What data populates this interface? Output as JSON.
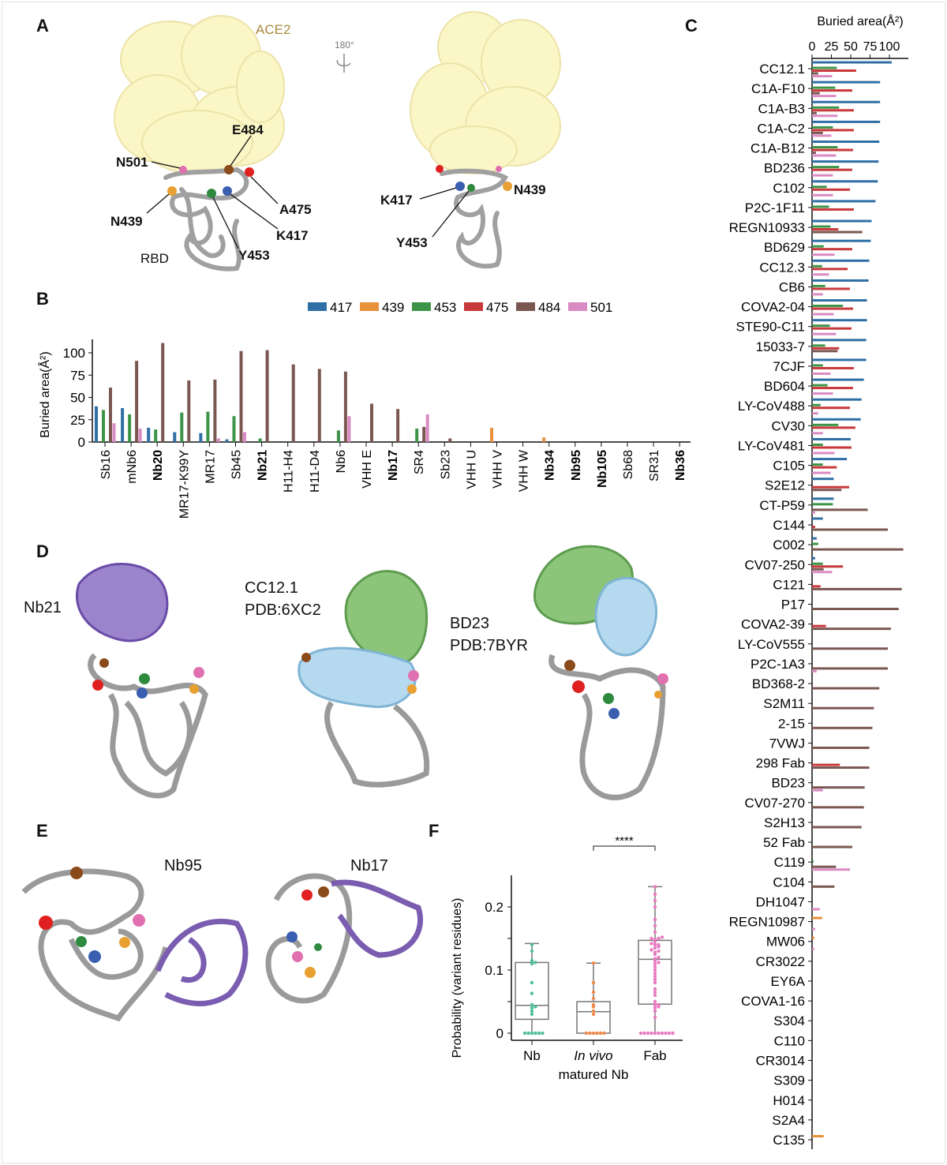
{
  "panel_labels": {
    "a": "A",
    "b": "B",
    "c": "C",
    "d": "D",
    "e": "E",
    "f": "F"
  },
  "colors": {
    "417": "#2f6fa5",
    "439": "#e8903a",
    "453": "#3d9448",
    "475": "#c7393b",
    "484": "#7b5752",
    "501": "#da8bc3",
    "ace2": "#fbf6c6",
    "ribbon": "#a0a0a0",
    "nb_purple": "#7a5cb0",
    "heavy_green": "#8cc47a",
    "light_blue": "#b5d9ee"
  },
  "panelA": {
    "ace2": "ACE2",
    "rotation": "180°",
    "rbd": "RBD",
    "left_labels": [
      "E484",
      "N501",
      "N439",
      "A475",
      "K417",
      "Y453"
    ],
    "right_labels": [
      "K417",
      "N439",
      "Y453"
    ]
  },
  "panelD": {
    "nb21": "Nb21",
    "cc121": "CC12.1",
    "cc121_pdb": "PDB:6XC2",
    "bd23": "BD23",
    "bd23_pdb": "PDB:7BYR"
  },
  "panelE": {
    "nb95": "Nb95",
    "nb17": "Nb17"
  },
  "chart_data": [
    {
      "id": "B",
      "type": "bar",
      "ylabel": "Buried area(Å²)",
      "ylim": [
        0,
        115
      ],
      "yticks": [
        0,
        25,
        50,
        75,
        100
      ],
      "legend_position": "top",
      "grid": false,
      "categories": [
        "Sb16",
        "mNb6",
        "Nb20",
        "MR17-K99Y",
        "MR17",
        "Sb45",
        "Nb21",
        "H11-H4",
        "H11-D4",
        "Nb6",
        "VHH E",
        "Nb17",
        "SR4",
        "Sb23",
        "VHH U",
        "VHH V",
        "VHH W",
        "Nb34",
        "Nb95",
        "Nb105",
        "Sb68",
        "SR31",
        "Nb36"
      ],
      "bold_categories": [
        "Nb20",
        "Nb21",
        "Nb17",
        "Nb34",
        "Nb95",
        "Nb105",
        "Nb36"
      ],
      "series": [
        {
          "name": "417",
          "values": [
            40,
            38,
            16,
            11,
            10,
            3,
            0,
            0,
            0,
            0,
            0,
            0,
            0,
            0,
            0,
            0,
            0,
            0,
            0,
            0,
            0,
            0,
            0
          ]
        },
        {
          "name": "439",
          "values": [
            0,
            0,
            0,
            0,
            0,
            0,
            0,
            0,
            0,
            0,
            0,
            0,
            0,
            0,
            0,
            16,
            0,
            5,
            0,
            0,
            0,
            0,
            0
          ]
        },
        {
          "name": "453",
          "values": [
            36,
            31,
            14,
            33,
            34,
            29,
            4,
            0,
            0,
            13,
            0,
            0,
            15,
            0,
            0,
            0,
            0,
            0,
            0,
            0,
            0,
            0,
            0
          ]
        },
        {
          "name": "475",
          "values": [
            0,
            0,
            0,
            0,
            0,
            0,
            0,
            0,
            0,
            0,
            0,
            0,
            0,
            0,
            0,
            0,
            0,
            0,
            0,
            0,
            0,
            0,
            0
          ]
        },
        {
          "name": "484",
          "values": [
            61,
            91,
            111,
            69,
            70,
            102,
            103,
            87,
            82,
            79,
            43,
            37,
            17,
            4,
            0,
            0,
            0,
            0,
            0,
            0,
            0,
            0,
            0
          ]
        },
        {
          "name": "501",
          "values": [
            21,
            15,
            0,
            0,
            4,
            11,
            0,
            0,
            0,
            29,
            0,
            0,
            31,
            0,
            0,
            0,
            0,
            0,
            0,
            0,
            0,
            0,
            0
          ]
        }
      ]
    },
    {
      "id": "C",
      "type": "bar",
      "orientation": "horizontal",
      "xlabel": "Buried area(Å²)",
      "xlim": [
        0,
        120
      ],
      "xticks": [
        0,
        25,
        50,
        75,
        100
      ],
      "grid": false,
      "categories": [
        "CC12.1",
        "C1A-F10",
        "C1A-B3",
        "C1A-C2",
        "C1A-B12",
        "BD236",
        "C102",
        "P2C-1F11",
        "REGN10933",
        "BD629",
        "CC12.3",
        "CB6",
        "COVA2-04",
        "STE90-C11",
        "15033-7",
        "7CJF",
        "BD604",
        "LY-CoV488",
        "CV30",
        "LY-CoV481",
        "C105",
        "S2E12",
        "CT-P59",
        "C144",
        "C002",
        "CV07-250",
        "C121",
        "P17",
        "COVA2-39",
        "LY-CoV555",
        "P2C-1A3",
        "BD368-2",
        "S2M11",
        "2-15",
        "7VWJ",
        "298 Fab",
        "BD23",
        "CV07-270",
        "S2H13",
        "52 Fab",
        "C119",
        "C104",
        "DH1047",
        "REGN10987",
        "MW06",
        "CR3022",
        "EY6A",
        "COVA1-16",
        "S304",
        "C110",
        "CR3014",
        "S309",
        "H014",
        "S2A4",
        "C135"
      ],
      "series": [
        {
          "name": "417",
          "values": [
            103,
            88,
            88,
            88,
            87,
            86,
            85,
            82,
            77,
            76,
            74,
            73,
            71,
            71,
            70,
            70,
            67,
            64,
            63,
            50,
            45,
            28,
            28,
            14,
            6,
            4,
            0,
            0,
            0,
            0,
            0,
            0,
            0,
            0,
            0,
            0,
            0,
            0,
            0,
            0,
            0,
            0,
            0,
            0,
            0,
            0,
            0,
            0,
            0,
            0,
            0,
            0,
            0,
            0,
            0
          ]
        },
        {
          "name": "439",
          "values": [
            0,
            0,
            0,
            0,
            0,
            0,
            0,
            0,
            0,
            0,
            0,
            0,
            0,
            0,
            0,
            0,
            0,
            0,
            0,
            0,
            0,
            0,
            0,
            0,
            0,
            0,
            0,
            0,
            0,
            0,
            0,
            0,
            0,
            0,
            0,
            0,
            0,
            0,
            0,
            0,
            0,
            0,
            0,
            13,
            3,
            0,
            0,
            0,
            0,
            0,
            0,
            0,
            0,
            0,
            15
          ]
        },
        {
          "name": "453",
          "values": [
            32,
            30,
            35,
            27,
            33,
            35,
            19,
            22,
            24,
            15,
            13,
            17,
            40,
            23,
            17,
            14,
            20,
            11,
            34,
            14,
            14,
            0,
            27,
            0,
            8,
            14,
            0,
            0,
            0,
            0,
            0,
            0,
            0,
            0,
            0,
            0,
            0,
            0,
            0,
            0,
            2,
            0,
            0,
            0,
            0,
            0,
            0,
            0,
            0,
            0,
            0,
            0,
            0,
            0,
            0
          ]
        },
        {
          "name": "475",
          "values": [
            57,
            52,
            54,
            54,
            53,
            52,
            49,
            54,
            34,
            52,
            46,
            49,
            53,
            51,
            35,
            54,
            53,
            49,
            56,
            51,
            32,
            48,
            0,
            4,
            0,
            40,
            11,
            0,
            18,
            0,
            0,
            0,
            0,
            0,
            0,
            36,
            0,
            0,
            0,
            0,
            0,
            0,
            0,
            0,
            0,
            0,
            0,
            0,
            0,
            0,
            0,
            0,
            0,
            0,
            0
          ]
        },
        {
          "name": "484",
          "values": [
            8,
            10,
            6,
            14,
            5,
            0,
            0,
            0,
            65,
            0,
            0,
            0,
            0,
            0,
            33,
            0,
            0,
            0,
            0,
            0,
            0,
            38,
            72,
            98,
            118,
            15,
            116,
            112,
            102,
            98,
            98,
            87,
            80,
            78,
            74,
            74,
            68,
            67,
            64,
            52,
            31,
            29,
            0,
            0,
            0,
            0,
            0,
            0,
            0,
            0,
            0,
            0,
            0,
            0,
            0
          ]
        },
        {
          "name": "501",
          "values": [
            26,
            31,
            33,
            25,
            31,
            27,
            27,
            0,
            0,
            29,
            22,
            14,
            28,
            31,
            0,
            24,
            27,
            8,
            14,
            29,
            24,
            0,
            4,
            0,
            0,
            26,
            0,
            0,
            0,
            0,
            6,
            0,
            0,
            0,
            0,
            0,
            14,
            0,
            0,
            0,
            49,
            0,
            10,
            4,
            3,
            0,
            0,
            0,
            0,
            0,
            0,
            0,
            0,
            0,
            0
          ]
        }
      ]
    },
    {
      "id": "F",
      "type": "box",
      "ylabel": "Probability (variant residues)",
      "ylim": [
        0,
        0.24
      ],
      "yticks": [
        0,
        0.1,
        0.2
      ],
      "categories": [
        "Nb",
        "In vivo",
        "Fab"
      ],
      "category_sublabel": "matured Nb",
      "boxes": [
        {
          "q1": 0.022,
          "median": 0.044,
          "q3": 0.112,
          "min": 0,
          "max": 0.142
        },
        {
          "q1": 0,
          "median": 0.034,
          "q3": 0.05,
          "min": 0,
          "max": 0.111
        },
        {
          "q1": 0.046,
          "median": 0.117,
          "q3": 0.147,
          "min": 0,
          "max": 0.232
        }
      ],
      "points": [
        [
          0,
          0,
          0,
          0,
          0,
          0,
          0.03,
          0.035,
          0.04,
          0.042,
          0.045,
          0.063,
          0.08,
          0.11,
          0.112,
          0.115,
          0.13,
          0.14
        ],
        [
          0,
          0,
          0,
          0,
          0,
          0,
          0.03,
          0.035,
          0.042,
          0.045,
          0.055,
          0.065,
          0.08,
          0.111
        ],
        [
          0,
          0,
          0,
          0,
          0,
          0,
          0,
          0,
          0,
          0,
          0.025,
          0.035,
          0.04,
          0.042,
          0.045,
          0.045,
          0.05,
          0.06,
          0.065,
          0.07,
          0.08,
          0.085,
          0.09,
          0.095,
          0.1,
          0.105,
          0.11,
          0.112,
          0.115,
          0.118,
          0.12,
          0.125,
          0.128,
          0.13,
          0.132,
          0.135,
          0.137,
          0.14,
          0.14,
          0.142,
          0.145,
          0.148,
          0.15,
          0.15,
          0.152,
          0.16,
          0.17,
          0.18,
          0.2,
          0.21,
          0.22,
          0.232
        ]
      ],
      "significance": [
        {
          "pair": [
            "Nb",
            "Fab"
          ],
          "label": "**"
        },
        {
          "pair": [
            "In vivo",
            "Fab"
          ],
          "label": "****"
        }
      ]
    }
  ]
}
